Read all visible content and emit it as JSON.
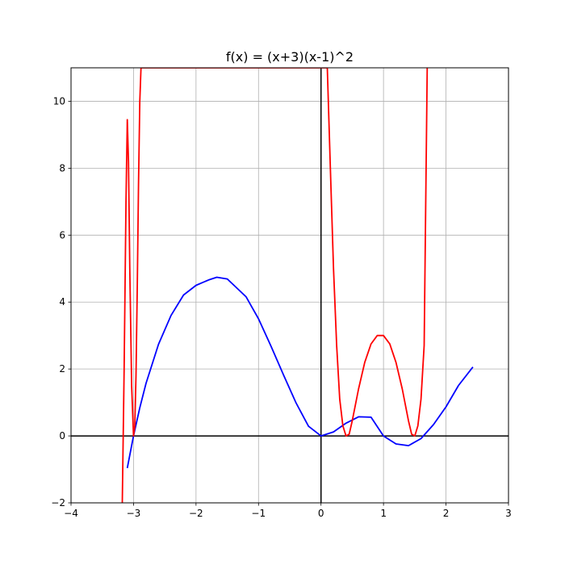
{
  "chart_data": {
    "type": "line",
    "title": "f(x) = (x+3)(x-1)^2",
    "xlabel": "",
    "ylabel": "",
    "xlim": [
      -4,
      3
    ],
    "ylim": [
      -2,
      11
    ],
    "xticks": [
      -4,
      -3,
      -2,
      -1,
      0,
      1,
      2,
      3
    ],
    "yticks": [
      -2,
      0,
      2,
      4,
      6,
      8,
      10
    ],
    "grid": true,
    "zero_lines": true,
    "legend": "none",
    "series": [
      {
        "color": "#0000ff",
        "x": [
          -3.1,
          -3.0,
          -2.9,
          -2.8,
          -2.6,
          -2.4,
          -2.2,
          -2.0,
          -1.8,
          -1.667,
          -1.5,
          -1.2,
          -1.0,
          -0.8,
          -0.6,
          -0.4,
          -0.2,
          0.0,
          0.2,
          0.4,
          0.6,
          0.8,
          1.0,
          1.2,
          1.4,
          1.6,
          1.8,
          2.0,
          2.2,
          2.43
        ],
        "y": [
          -0.96,
          0.0,
          0.84,
          1.57,
          2.74,
          3.6,
          4.21,
          4.5,
          4.66,
          4.74,
          4.69,
          4.16,
          3.5,
          2.68,
          1.82,
          0.99,
          0.29,
          0.0,
          0.12,
          0.38,
          0.57,
          0.56,
          0.0,
          -0.24,
          -0.29,
          -0.08,
          0.34,
          0.87,
          1.51,
          2.06
        ]
      },
      {
        "color": "#ff0000",
        "x": [
          -3.18,
          -3.15,
          -3.12,
          -3.1,
          -3.08,
          -3.06,
          -3.03,
          -3.0,
          -2.98,
          -2.96,
          -2.94,
          -2.92,
          -2.9,
          -2.88,
          -2.86,
          -2.85,
          0.1,
          0.15,
          0.2,
          0.25,
          0.3,
          0.35,
          0.4,
          0.45,
          0.5,
          0.6,
          0.7,
          0.8,
          0.9,
          1.0,
          1.1,
          1.2,
          1.3,
          1.4,
          1.45,
          1.5,
          1.55,
          1.6,
          1.65,
          1.7
        ],
        "y": [
          -2.0,
          2.0,
          7.0,
          9.45,
          8.2,
          5.0,
          1.5,
          0.0,
          0.3,
          1.8,
          4.5,
          7.5,
          10.0,
          11.0,
          11.0,
          11.0,
          11.0,
          8.0,
          5.0,
          2.7,
          1.1,
          0.3,
          0.0,
          0.05,
          0.45,
          1.4,
          2.2,
          2.75,
          3.0,
          3.0,
          2.75,
          2.2,
          1.4,
          0.45,
          0.05,
          0.0,
          0.3,
          1.1,
          2.7,
          11.0
        ]
      }
    ]
  }
}
